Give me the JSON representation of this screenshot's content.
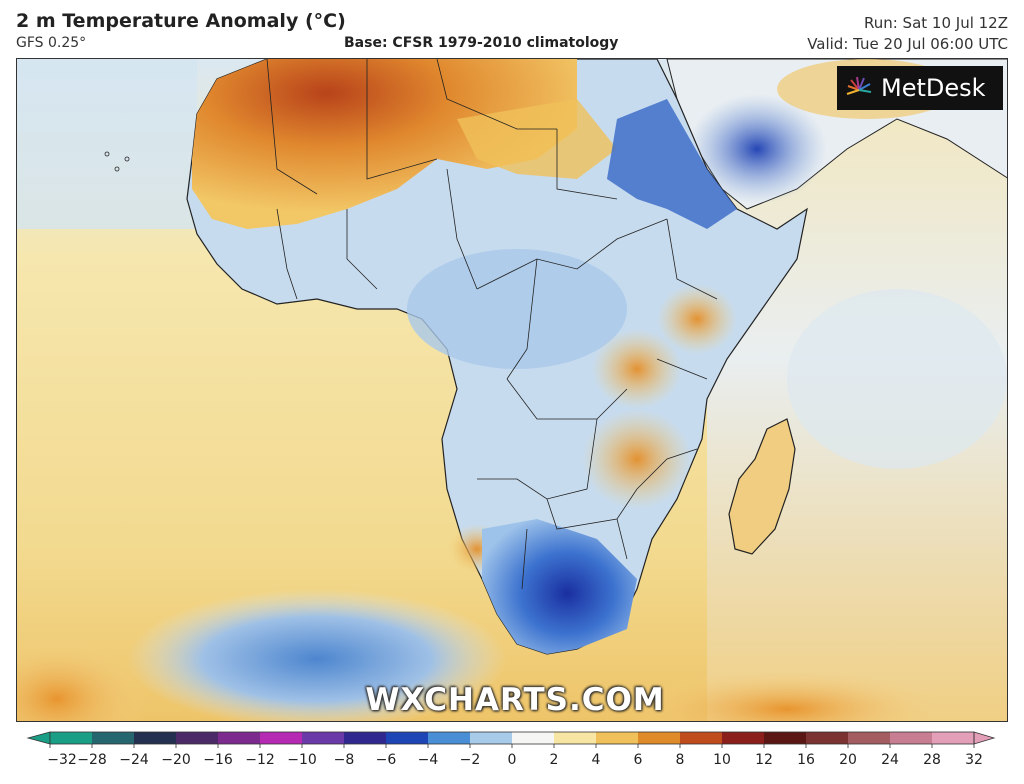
{
  "header": {
    "title": "2 m Temperature Anomaly (°C)",
    "model": "GFS 0.25°",
    "base": "Base: CFSR 1979-2010 climatology",
    "run": "Run: Sat 10 Jul 12Z",
    "valid": "Valid: Tue 20 Jul 06:00 UTC"
  },
  "logo": {
    "text": "MetDesk",
    "icon": "sunburst-icon"
  },
  "watermark": "WXCHARTS.COM",
  "colorbar": {
    "labels": [
      "−32",
      "−28",
      "−24",
      "−20",
      "−16",
      "−12",
      "−10",
      "−8",
      "−6",
      "−4",
      "−2",
      "0",
      "2",
      "4",
      "6",
      "8",
      "10",
      "12",
      "16",
      "20",
      "24",
      "28",
      "32"
    ],
    "colors": [
      "#1a9e86",
      "#26666f",
      "#24304f",
      "#4b2a67",
      "#7d2a8f",
      "#b62ab3",
      "#6a3aa8",
      "#31288f",
      "#1e45b6",
      "#4a8fd6",
      "#a7cbe9",
      "#f6f7f4",
      "#f7e6a3",
      "#f0c15a",
      "#e08b2a",
      "#c04b1c",
      "#8a1f1b",
      "#5a1714",
      "#7a3330",
      "#a35d61",
      "#c77e93",
      "#e39fb8"
    ],
    "colors_note": ""
  },
  "map": {
    "ocean_warm": "#f5e3a4",
    "ocean_cool": "#c9dff1",
    "land_cool": "#8fb8e4",
    "land_cold": "#2d5fc0",
    "land_warm": "#e8a54a",
    "land_hot": "#c85a22"
  }
}
